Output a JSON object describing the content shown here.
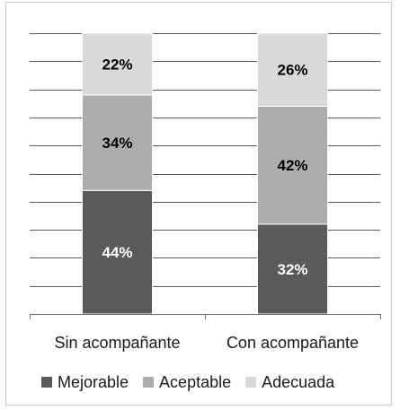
{
  "chart_data": {
    "type": "bar",
    "stacked": true,
    "percent": true,
    "categories": [
      "Sin acompañante",
      "Con acompañante"
    ],
    "series": [
      {
        "name": "Mejorable",
        "values": [
          44,
          32
        ],
        "color": "#5a5a5a",
        "label_color": "#ffffff"
      },
      {
        "name": "Aceptable",
        "values": [
          34,
          42
        ],
        "color": "#adadad",
        "label_color": "#000000"
      },
      {
        "name": "Adecuada",
        "values": [
          22,
          26
        ],
        "color": "#dadada",
        "label_color": "#000000"
      }
    ],
    "ylim": [
      0,
      100
    ],
    "grid": true,
    "legend": "bottom"
  }
}
